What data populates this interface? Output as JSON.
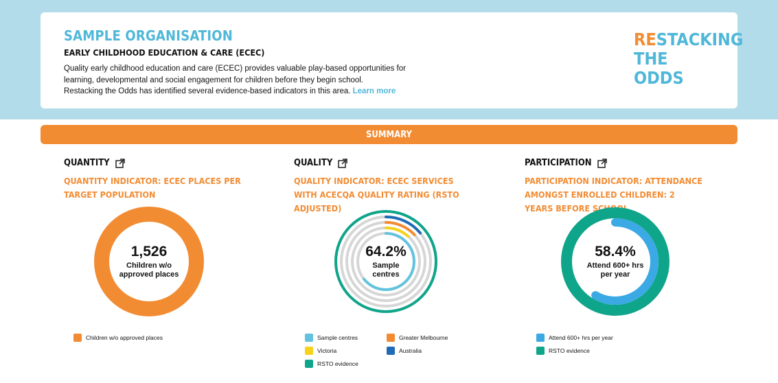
{
  "header": {
    "org_name": "SAMPLE ORGANISATION",
    "domain_title": "EARLY CHILDHOOD EDUCATION & CARE (ECEC)",
    "description_line1": "Quality early childhood education and care (ECEC) provides valuable play-based opportunities for",
    "description_line2": "learning, developmental and social engagement for children before they begin school.",
    "description_line3": "Restacking the Odds has identified several evidence-based indicators in this area.",
    "learn_more": "Learn more"
  },
  "logo": {
    "line1_highlight": "RE",
    "line1_rest": "STACKING",
    "line2_highlight": "THE",
    "line2_rest": " ODDS"
  },
  "summary_label": "SUMMARY",
  "colors": {
    "orange": "#f28c33",
    "light_blue": "#63c3de",
    "yellow": "#f5d21b",
    "dark_blue": "#1f6bb5",
    "teal": "#0fa58a",
    "bright_blue": "#3aa9e4",
    "grey": "#d6d6d6"
  },
  "sections": [
    {
      "title": "QUANTITY",
      "icon": "external-link-icon",
      "indicator": "QUANTITY INDICATOR: ECEC PLACES PER TARGET POPULATION",
      "value": "1,526",
      "value_label_line1": "Children w/o",
      "value_label_line2": "approved places",
      "legend": [
        {
          "label": "Children w/o approved places",
          "color": "#f28c33"
        }
      ]
    },
    {
      "title": "QUALITY",
      "icon": "external-link-icon",
      "indicator": "QUALITY INDICATOR: ECEC SERVICES WITH ACECQA QUALITY RATING (RSTO ADJUSTED)",
      "value": "64.2%",
      "value_label_line1": "Sample",
      "value_label_line2": "centres",
      "rings": [
        {
          "name": "RSTO evidence",
          "fraction": 1.0
        },
        {
          "name": "Australia",
          "fraction": 0.14
        },
        {
          "name": "Greater Melbourne",
          "fraction": 0.13
        },
        {
          "name": "Victoria",
          "fraction": 0.115
        },
        {
          "name": "Sample centres",
          "fraction": 0.642
        }
      ],
      "legend": [
        {
          "label": "Sample centres",
          "color": "#63c3de"
        },
        {
          "label": "Greater Melbourne",
          "color": "#f28c33"
        },
        {
          "label": "Victoria",
          "color": "#f5d21b"
        },
        {
          "label": "Australia",
          "color": "#1f6bb5"
        },
        {
          "label": "RSTO evidence",
          "color": "#0fa58a"
        }
      ]
    },
    {
      "title": "PARTICIPATION",
      "icon": "external-link-icon",
      "indicator": "PARTICIPATION INDICATOR: ATTENDANCE AMONGST ENROLLED CHILDREN: 2 YEARS BEFORE SCHOOL",
      "value": "58.4%",
      "value_label_line1": "Attend 600+ hrs",
      "value_label_line2": "per year",
      "rings": [
        {
          "name": "RSTO evidence",
          "fraction": 1.0
        },
        {
          "name": "Attend 600+ hrs per year",
          "fraction": 0.584
        }
      ],
      "legend": [
        {
          "label": "Attend 600+ hrs per year",
          "color": "#3aa9e4"
        },
        {
          "label": "RSTO evidence",
          "color": "#0fa58a"
        }
      ]
    }
  ]
}
